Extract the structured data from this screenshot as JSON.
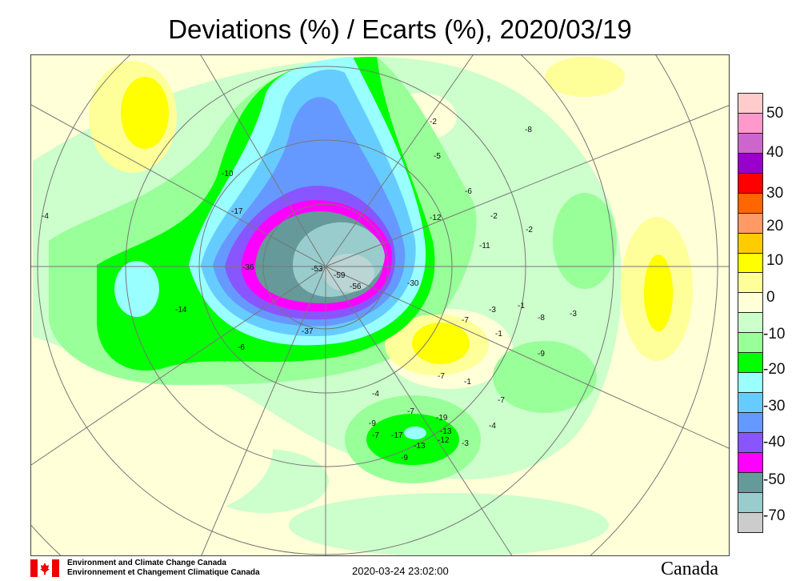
{
  "title": "Deviations (%) / Ecarts (%), 2020/03/19",
  "colorbar": {
    "colors": [
      "#ffcccc",
      "#ff99cc",
      "#cc66cc",
      "#9900cc",
      "#ff0000",
      "#ff6600",
      "#ff9966",
      "#ffcc00",
      "#ffff00",
      "#ffff99",
      "#ffffd8",
      "#ccffcc",
      "#99ff99",
      "#00ff00",
      "#99ffff",
      "#66ccff",
      "#6699ff",
      "#8855ff",
      "#ff00ff",
      "#669999",
      "#99cccc",
      "#bbd4d4",
      "#cccccc"
    ],
    "labels": [
      "50",
      "40",
      "30",
      "20",
      "10",
      "0",
      "-10",
      "-20",
      "-30",
      "-40",
      "-50",
      "-70"
    ]
  },
  "map": {
    "stations": [
      "-53",
      "-59",
      "-56",
      "-30",
      "-37",
      "-36",
      "-14",
      "-17",
      "-10",
      "-12",
      "-6",
      "-2",
      "-11",
      "-3",
      "-1",
      "-7",
      "-7",
      "-1",
      "-7",
      "-6",
      "-4",
      "-7",
      "-9",
      "-7",
      "-17",
      "-13",
      "-9",
      "-19",
      "-13",
      "-12",
      "-3",
      "-4",
      "-2",
      "-8",
      "-5",
      "-4",
      "-2",
      "-8",
      "-3",
      "-1",
      "-9"
    ]
  },
  "footer": {
    "org_en": "Environment and Climate Change Canada",
    "org_fr": "Environnement et Changement Climatique Canada",
    "timestamp": "2020-03-24 23:02:00",
    "wordmark": "Canada"
  }
}
